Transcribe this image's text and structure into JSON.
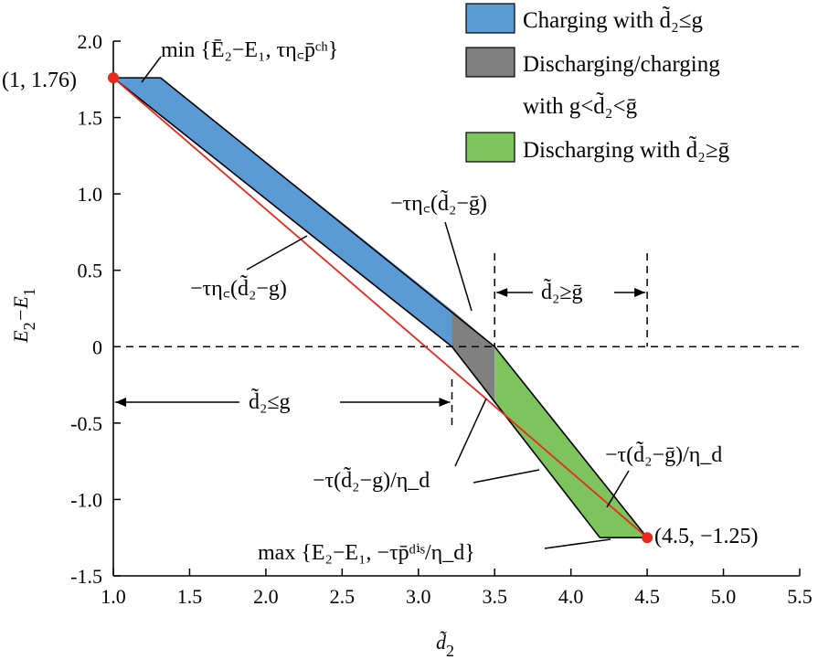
{
  "chart_data": {
    "type": "area",
    "xlabel": "d̃",
    "xlabel_sub": "2",
    "ylabel": "E",
    "ylabel_sub_a": "2",
    "ylabel_mid": "−E",
    "ylabel_sub_b": "1",
    "xlim": [
      1.0,
      5.5
    ],
    "ylim": [
      -1.5,
      2.0
    ],
    "x_ticks": [
      "1.0",
      "1.5",
      "2.0",
      "2.5",
      "3.0",
      "3.5",
      "4.0",
      "4.5",
      "5.0",
      "5.5"
    ],
    "y_ticks": [
      "-1.5",
      "-1.0",
      "-0.5",
      "0",
      "0.5",
      "1.0",
      "1.5",
      "2.0"
    ],
    "legend_position": "top-right",
    "series": [
      {
        "name": "Charging with d̃2≤g",
        "color": "#5b9bd5",
        "polygon": [
          [
            1.0,
            1.76
          ],
          [
            1.31,
            1.76
          ],
          [
            3.22,
            0.24
          ],
          [
            3.22,
            0.0
          ]
        ]
      },
      {
        "name": "Discharging/charging with g<d̃2<ḡ",
        "color": "#808080",
        "polygon": [
          [
            3.22,
            0.0
          ],
          [
            3.22,
            0.24
          ],
          [
            3.5,
            0.0
          ],
          [
            3.5,
            -0.37
          ]
        ]
      },
      {
        "name": "Discharging with d̃2≥ḡ",
        "color": "#7dc45c",
        "polygon": [
          [
            3.5,
            0.0
          ],
          [
            3.5,
            -0.37
          ],
          [
            4.19,
            -1.25
          ],
          [
            4.5,
            -1.25
          ]
        ]
      }
    ],
    "reference_line": {
      "color": "#e8281e",
      "points": [
        [
          1.0,
          1.76
        ],
        [
          4.5,
          -1.25
        ]
      ]
    },
    "points": [
      {
        "x": 1.0,
        "y": 1.76,
        "label": "(1, 1.76)",
        "color": "#e8281e"
      },
      {
        "x": 4.5,
        "y": -1.25,
        "label": "(4.5, −1.25)",
        "color": "#e8281e"
      }
    ],
    "legend": [
      {
        "text": "Charging with d̃₂≤g",
        "color": "#5b9bd5"
      },
      {
        "text": "Discharging/charging",
        "text2": "with g<d̃₂<ḡ",
        "color": "#808080"
      },
      {
        "text": "Discharging with d̃₂≥ḡ",
        "color": "#7dc45c"
      }
    ],
    "annotations": {
      "top": "min {Ē₂−E₁, τη꜀p̄ᶜʰ}",
      "upper_slope": "−τη꜀(d̃₂−ḡ)",
      "lower_slope": "−τη꜀(d̃₂−g)",
      "region_right": "d̃₂≥ḡ",
      "region_left": "d̃₂≤g",
      "dis_lower": "−τ(d̃₂−g)/η_d",
      "dis_upper": "−τ(d̃₂−ḡ)/η_d",
      "bottom": "max {E₂−E₁, −τp̄ᵈⁱˢ/η_d}"
    }
  }
}
